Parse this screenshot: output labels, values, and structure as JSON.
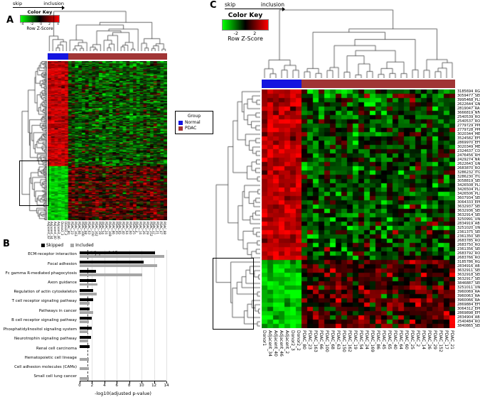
{
  "panel_a": {
    "label": "A",
    "flow": {
      "skip": "skip",
      "inclusion": "inclusion"
    },
    "color_key": {
      "title": "Color Key",
      "axis_label": "Row Z-Score",
      "ticks": [
        "-4",
        "-2",
        "0",
        "2",
        "4"
      ]
    },
    "legend": {
      "title": "Group",
      "items": [
        {
          "label": "Normal",
          "color": "#1414e0"
        },
        {
          "label": "PDAC",
          "color": "#a03535"
        }
      ]
    }
  },
  "panel_b": {
    "label": "B",
    "legend": [
      {
        "label": "Skipped",
        "color": "#000000"
      },
      {
        "label": "Included",
        "color": "#a6a6a6"
      }
    ],
    "annotation": "Adj. p = 0.05",
    "xlabel": "-log10(adjusted p-value)"
  },
  "panel_c": {
    "label": "C",
    "flow": {
      "skip": "skip",
      "inclusion": "inclusion"
    },
    "color_key": {
      "title": "Color Key",
      "axis_label": "Row Z-Score",
      "ticks": [
        "-2",
        "2"
      ]
    }
  },
  "chart_data": [
    {
      "id": "panel_a_heatmap",
      "type": "heatmap",
      "colormap": {
        "low": "#00ff00",
        "mid": "#000000",
        "high": "#ff0000"
      },
      "color_key_ticks": [
        -4,
        -2,
        0,
        2,
        4
      ],
      "groups": [
        {
          "name": "Normal",
          "color": "#1414e0",
          "n_columns": 6
        },
        {
          "name": "PDAC",
          "color": "#a03535",
          "n_columns": 29
        }
      ],
      "row_clusters": [
        {
          "rows": 132,
          "normal_mean": 1.8,
          "pdac_mean": -0.6
        },
        {
          "rows": 68,
          "normal_mean": -1.9,
          "pdac_mean": 0.6
        }
      ],
      "noise_sd": 0.85,
      "column_labels": [
        "Adjacent_42",
        "Adjacent_34",
        "Adjacent_40",
        "Adjacent_46",
        "Donor2_3",
        "Donor2_2",
        "PDAC_80",
        "PDAC_23",
        "PDAC_163",
        "PDAC_66",
        "PDAC_100",
        "PDAC_68",
        "PDAC_63",
        "PDAC_150",
        "PDAC_162",
        "PDAC_19",
        "PDAC_54",
        "PDAC_24",
        "PDAC_169",
        "PDAC_86",
        "PDAC_45",
        "PDAC_65",
        "PDAC_40",
        "PDAC_64",
        "PDAC_60",
        "PDAC_25",
        "PDAC_2",
        "PDAC_14",
        "PDAC_26",
        "PDAC_29",
        "PDAC_152",
        "PDAC_17",
        "PDAC_21",
        "PDAC_47",
        "PDAC_88"
      ]
    },
    {
      "id": "panel_b_enrichment",
      "type": "bar",
      "orientation": "horizontal",
      "categories": [
        "ECM-receptor interaction",
        "Focal adhesion",
        "Fc gamma R-mediated phagocytosis",
        "Axon guidance",
        "Regulation of actin cytoskeleton",
        "T cell receptor signaling pathway",
        "Pathways in cancer",
        "B cell receptor signaling pathway",
        "Phosphatidylinositol signaling system",
        "Neurotrophin signaling pathway",
        "Renal cell carcinoma",
        "Hematopoietic cell lineage",
        "Cell adhesion molecules (CAMs)",
        "Small cell lung cancer"
      ],
      "series": [
        {
          "name": "Skipped",
          "color": "#000000",
          "values": [
            12.2,
            10.3,
            2.6,
            2.6,
            2.2,
            2.2,
            1.6,
            2.0,
            1.9,
            1.8,
            1.6,
            0,
            0,
            0
          ]
        },
        {
          "name": "Included",
          "color": "#a6a6a6",
          "values": [
            13.6,
            12.5,
            10.1,
            2.9,
            2.7,
            1.6,
            2.2,
            1.5,
            1.4,
            1.4,
            0,
            1.5,
            1.5,
            1.45
          ]
        }
      ],
      "xlabel": "-log10(adjusted p-value)",
      "xlim": [
        0,
        14
      ],
      "xticks": [
        0,
        2,
        4,
        6,
        8,
        10,
        12,
        14
      ],
      "threshold_line": {
        "value": 1.3,
        "style": "dashed",
        "label": "Adj. p = 0.05"
      },
      "legend_position": "top"
    },
    {
      "id": "panel_c_heatmap",
      "type": "heatmap",
      "colormap": {
        "low": "#00ff00",
        "mid": "#000000",
        "high": "#ff0000"
      },
      "color_key_ticks": [
        -2,
        2
      ],
      "groups": [
        {
          "name": "Normal",
          "color": "#1414e0",
          "n_columns": 7
        },
        {
          "name": "PDAC",
          "color": "#a03535",
          "n_columns": 27
        }
      ],
      "row_clusters": [
        {
          "rows": 40,
          "normal_mean": 1.8,
          "pdac_mean": -0.55
        },
        {
          "rows": 16,
          "normal_mean": -1.9,
          "pdac_mean": 0.55
        }
      ],
      "noise_sd": 0.8,
      "row_labels": [
        "3185694_RGS3",
        "3059477_SEMA3A",
        "3995468_PLXNA3",
        "2622644_GNAI2",
        "2819047_RASA1",
        "3666819_NFAT5",
        "2540539_ROCK2",
        "2540537_ROCK2",
        "2779729_PPP3CA",
        "2779728_PPP3CA",
        "3020344_MET",
        "3524582_EFNB2",
        "2869970_EFNA5",
        "3020349_MET",
        "2324637_CDC42",
        "2476456_RHOA",
        "2429274_NRAS",
        "2622643_GNAI2",
        "2683870_ROBO1",
        "3286232_ITGB1",
        "3286230_ITGB1",
        "3058819_SEMA3C",
        "3426508_PLXNC1",
        "3426504_PLXNC1",
        "3426506_PLXNC1",
        "3607934_SEMA4B",
        "3064333_EPHB4",
        "3632937_SEMA7A",
        "3632936_SEMA7A",
        "3632914_SEMA7A",
        "3250991_UNC5B",
        "2834919_ABLIM3",
        "3251020_UNC5B",
        "2361375_SEMA4A",
        "2361350_SEMA4A",
        "2683785_ROBO1",
        "2683750_ROBO1",
        "2361356_SEMA4A",
        "2683792_ROBO1",
        "2683766_ROBO1",
        "3185786_RGS3",
        "2834916_ABLIM3",
        "3632911_SEMA7A",
        "3632918_SEMA7A",
        "3632917_SEMA7A",
        "3846887_SEMA6B",
        "3251011_UNC5B",
        "3960069_RAC2",
        "3960063_RAC2",
        "3960066_RAC2",
        "2869884_EFNA5",
        "3064312_EPHB4",
        "2869898_EFNA5",
        "2834904_ABLIM3",
        "2540484_ROCK2",
        "3840865_SEMA6B"
      ],
      "column_labels": [
        "Donor1",
        "Adjacent_34",
        "Adjacent_40",
        "Adjacent_46",
        "Adjacent_2",
        "Donor2_3",
        "Donor2_2",
        "PDAC_80",
        "PDAC_23",
        "PDAC_163",
        "PDAC_66",
        "PDAC_100",
        "PDAC_68",
        "PDAC_63",
        "PDAC_150",
        "PDAC_162",
        "PDAC_19",
        "PDAC_54",
        "PDAC_24",
        "PDAC_169",
        "PDAC_86",
        "PDAC_45",
        "PDAC_65",
        "PDAC_40",
        "PDAC_64",
        "PDAC_60",
        "PDAC_25",
        "PDAC_2",
        "PDAC_14",
        "PDAC_26",
        "PDAC_29",
        "PDAC_152",
        "PDAC_17",
        "PDAC_21"
      ]
    }
  ]
}
